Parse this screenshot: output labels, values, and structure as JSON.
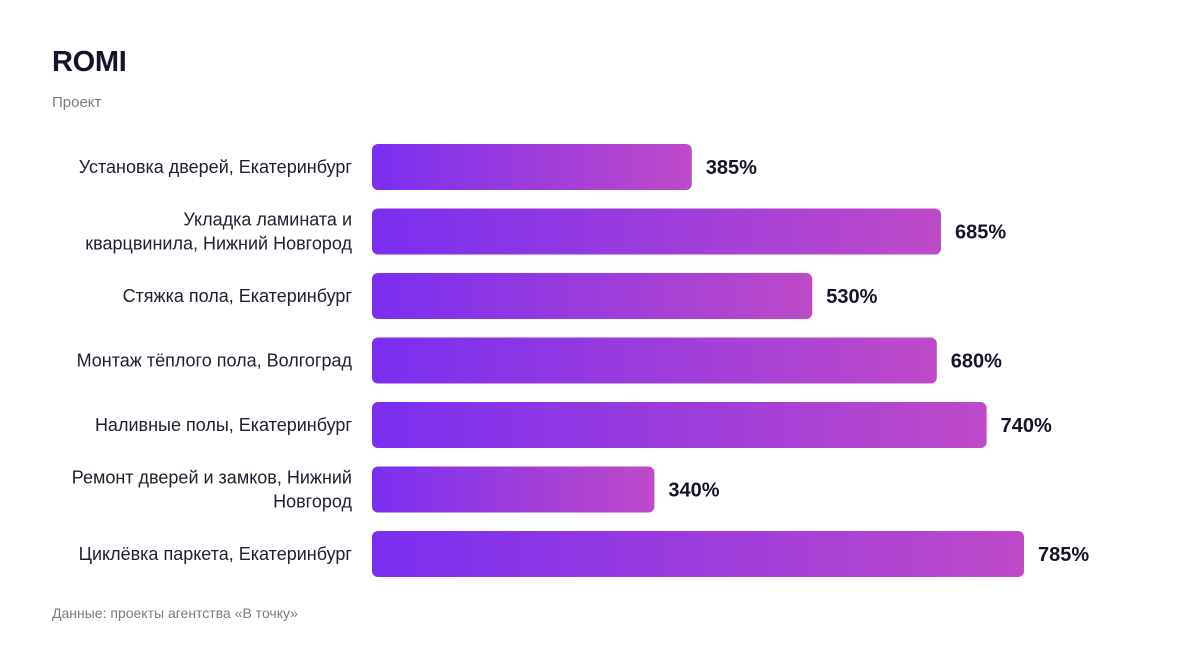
{
  "header": {
    "title": "ROMI",
    "subtitle": "Проект"
  },
  "footer": {
    "source": "Данные: проекты агентства «В точку»"
  },
  "colors": {
    "bar_start": "#7a2ff0",
    "bar_end": "#be4ac8",
    "text": "#14142b",
    "muted": "#7a7a86"
  },
  "chart_data": {
    "type": "bar",
    "orientation": "horizontal",
    "title": "ROMI",
    "subtitle": "Проект",
    "unit": "%",
    "categories": [
      [
        "Установка дверей, Екатеринбург"
      ],
      [
        "Укладка ламината и",
        "кварцвинила, Нижний Новгород"
      ],
      [
        "Стяжка пола, Екатеринбург"
      ],
      [
        "Монтаж тёплого пола, Волгоград"
      ],
      [
        "Наливные полы, Екатеринбург"
      ],
      [
        "Ремонт дверей и замков, Нижний",
        "Новгород"
      ],
      [
        "Циклёвка паркета, Екатеринбург"
      ]
    ],
    "values": [
      385,
      685,
      530,
      680,
      740,
      340,
      785
    ],
    "value_labels": [
      "385%",
      "685%",
      "530%",
      "680%",
      "740%",
      "340%",
      "785%"
    ],
    "grid": false,
    "legend": "none"
  }
}
